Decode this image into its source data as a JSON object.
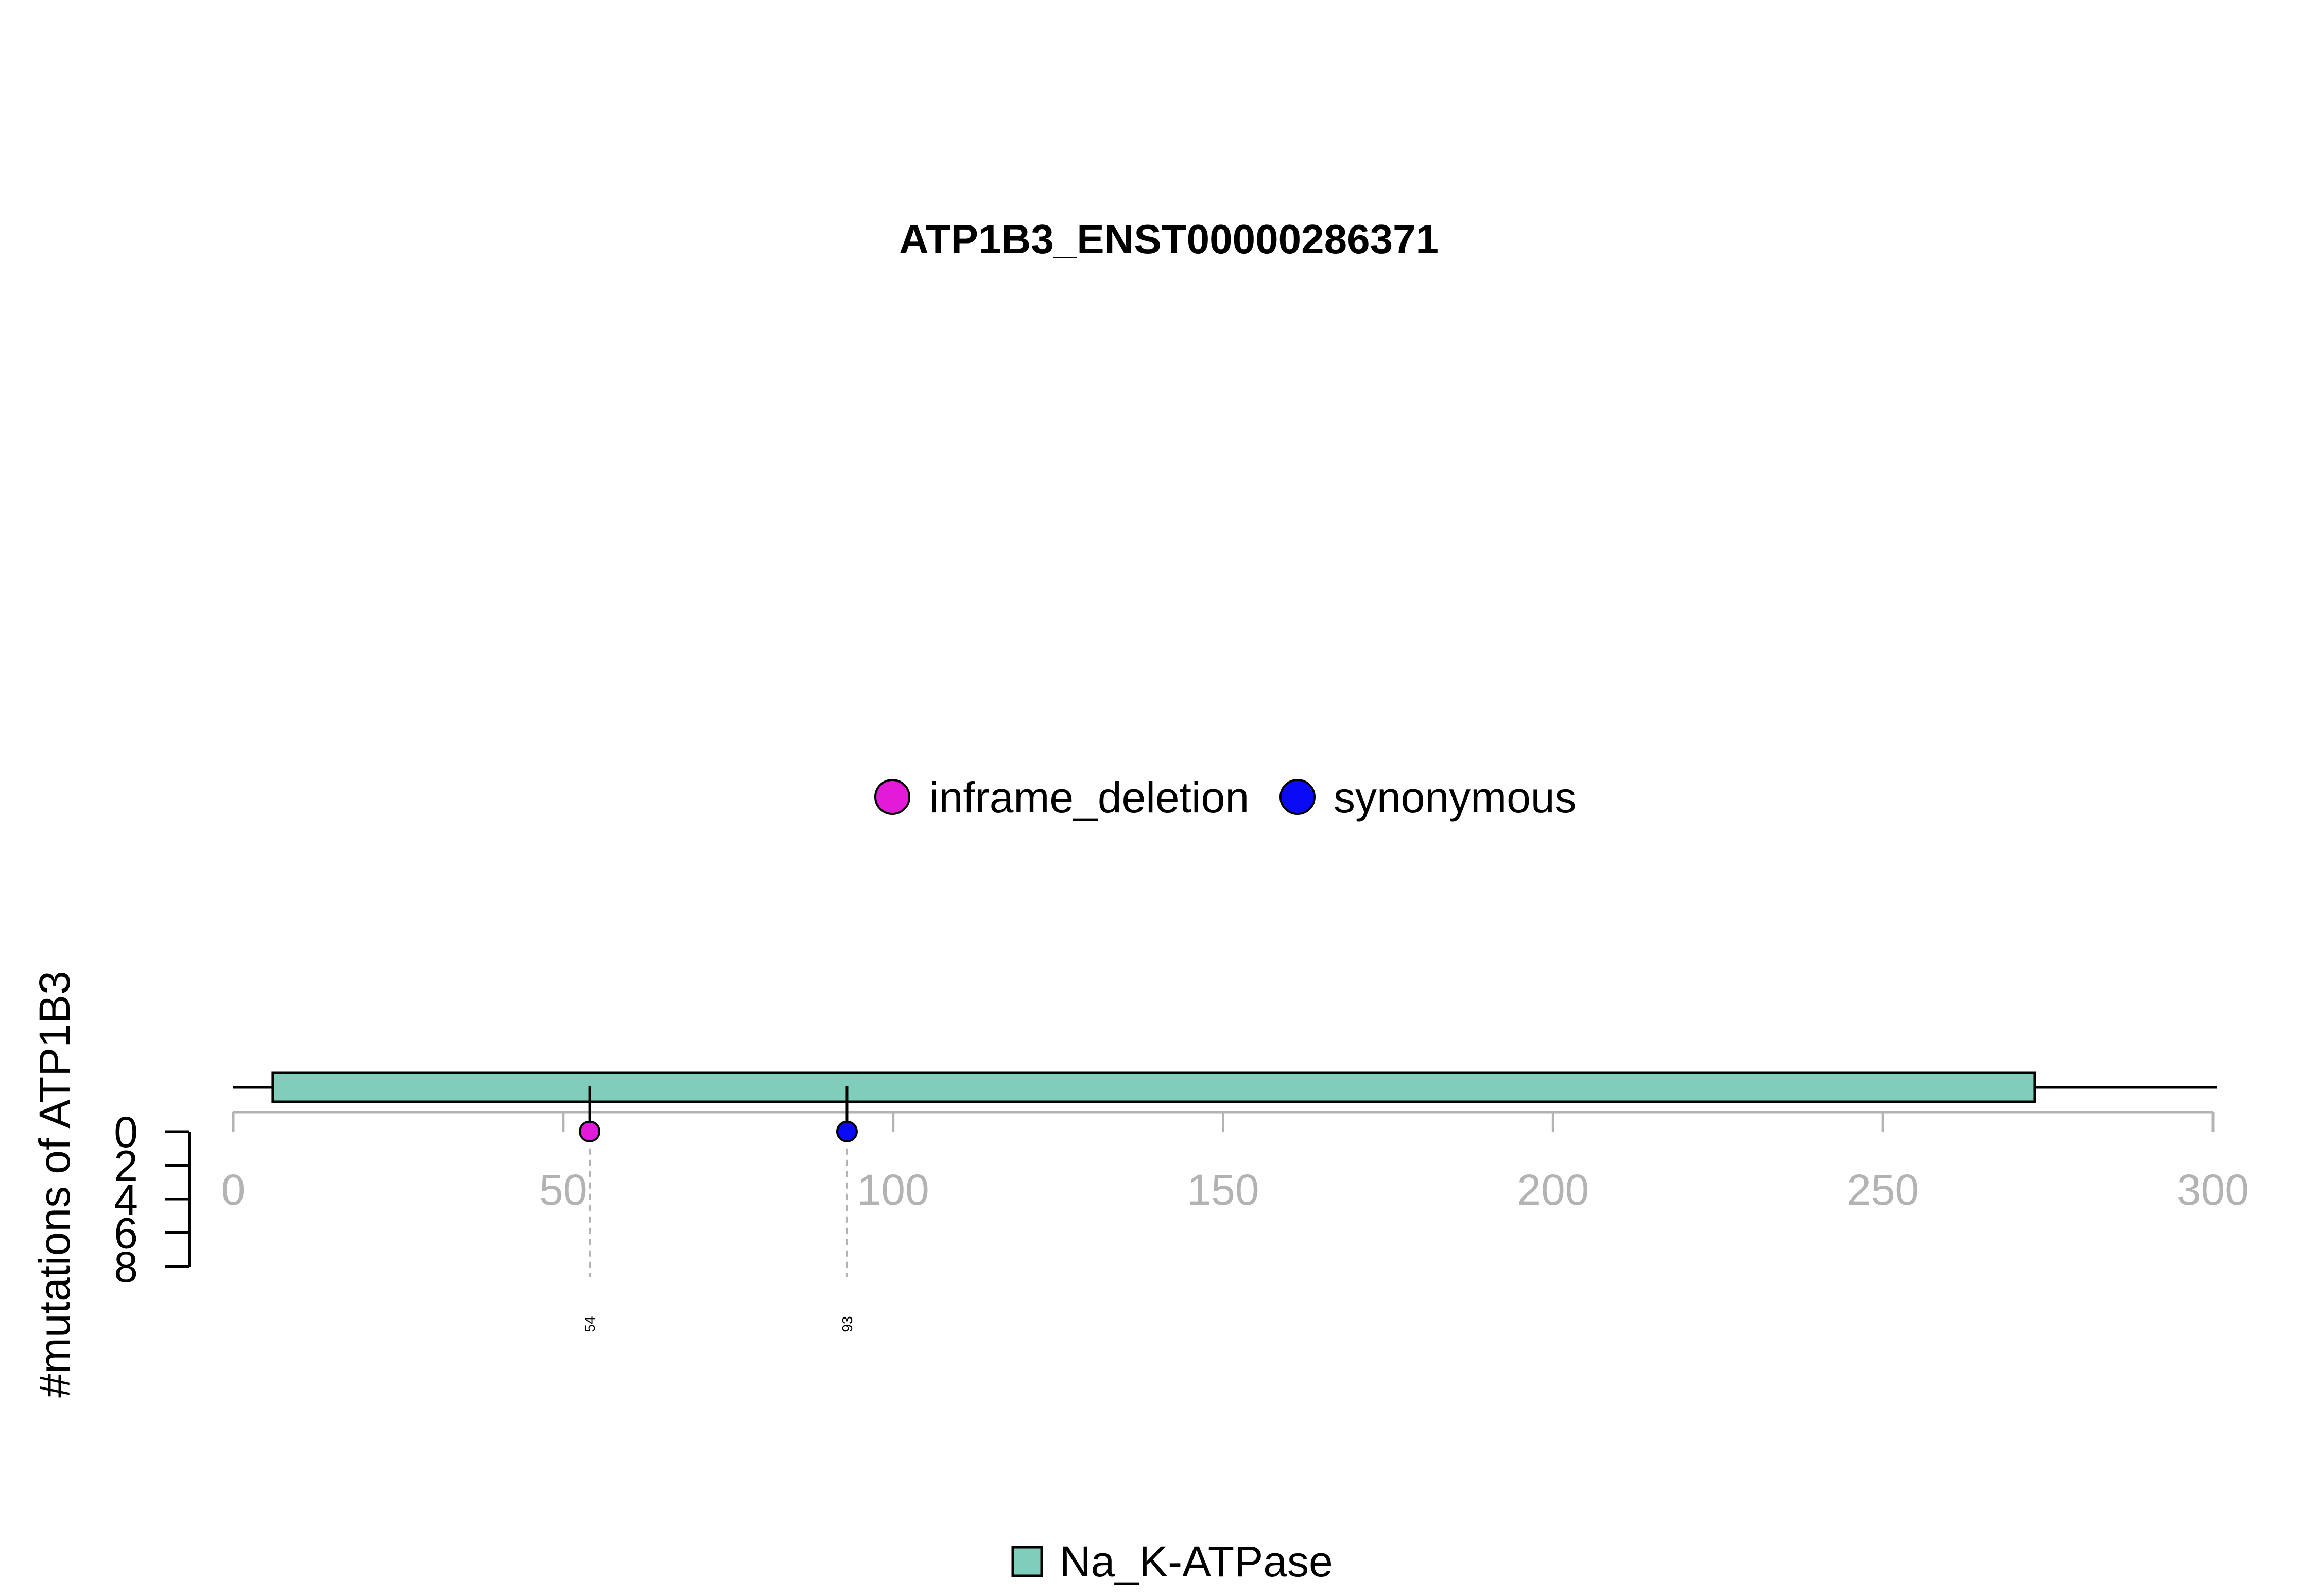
{
  "chart_data": {
    "type": "lollipop",
    "title": "ATP1B3_ENST00000286371",
    "ylabel": "#mutations of ATP1B3",
    "xlim": [
      0,
      300
    ],
    "x_ticks": [
      0,
      50,
      100,
      150,
      200,
      250,
      300
    ],
    "ylim": [
      0,
      8
    ],
    "y_ticks": [
      0,
      2,
      4,
      6,
      8
    ],
    "protein_length": 300,
    "domains": [
      {
        "name": "Na_K-ATPase",
        "start": 6,
        "end": 273,
        "color": "#7fcdbb"
      }
    ],
    "mutation_legend": [
      {
        "name": "inframe_deletion",
        "color": "#e31ad8"
      },
      {
        "name": "synonymous",
        "color": "#0a0af5"
      }
    ],
    "mutations": [
      {
        "position": 54,
        "count": 1,
        "type": "inframe_deletion",
        "color": "#e31ad8",
        "label": "54"
      },
      {
        "position": 93,
        "count": 1,
        "type": "synonymous",
        "color": "#0a0af5",
        "label": "93"
      }
    ]
  }
}
